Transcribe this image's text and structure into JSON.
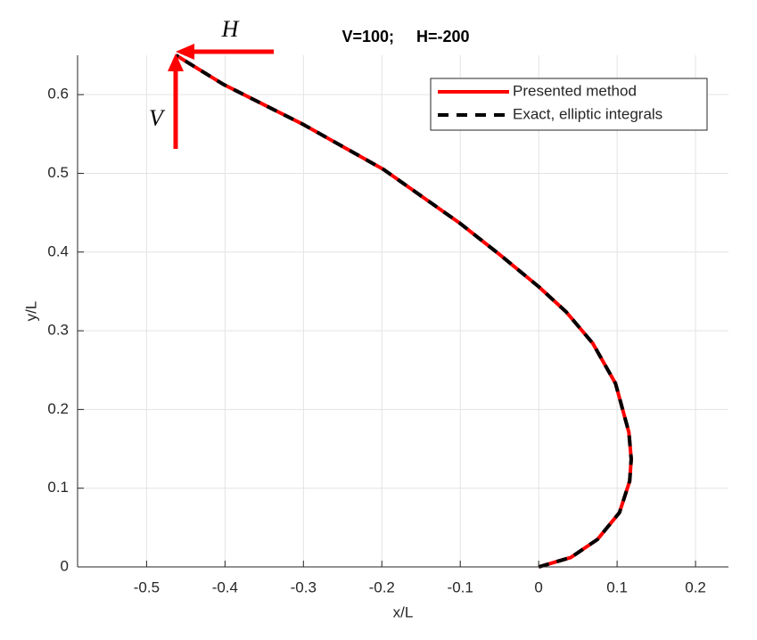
{
  "chart_data": {
    "type": "line",
    "title": "V=100;     H=-200",
    "annotations": [
      "H",
      "V"
    ],
    "xlabel": "x/L",
    "ylabel": "y/L",
    "x": [
      0,
      0.041,
      0.075,
      0.103,
      0.116,
      0.118,
      0.115,
      0.098,
      0.069,
      0.035,
      0,
      -0.05,
      -0.101,
      -0.198,
      -0.3,
      -0.402,
      -0.4625
    ],
    "series": [
      {
        "name": "Presented method",
        "color": "#ff0000",
        "style": "solid",
        "values": [
          0,
          0.012,
          0.035,
          0.069,
          0.109,
          0.137,
          0.171,
          0.233,
          0.284,
          0.324,
          0.356,
          0.397,
          0.437,
          0.505,
          0.562,
          0.613,
          0.65
        ]
      },
      {
        "name": "Exact, elliptic integrals",
        "color": "#000000",
        "style": "dashed",
        "values": [
          0,
          0.012,
          0.035,
          0.069,
          0.109,
          0.137,
          0.171,
          0.233,
          0.284,
          0.324,
          0.356,
          0.397,
          0.437,
          0.505,
          0.562,
          0.613,
          0.65
        ]
      }
    ],
    "xlim": [
      -0.588,
      0.242
    ],
    "ylim": [
      0,
      0.65
    ],
    "xticks": [
      -0.5,
      -0.4,
      -0.3,
      -0.2,
      -0.1,
      0,
      0.1,
      0.2
    ],
    "yticks": [
      0,
      0.1,
      0.2,
      0.3,
      0.4,
      0.5,
      0.6
    ],
    "grid": true,
    "legend": "northeast"
  }
}
